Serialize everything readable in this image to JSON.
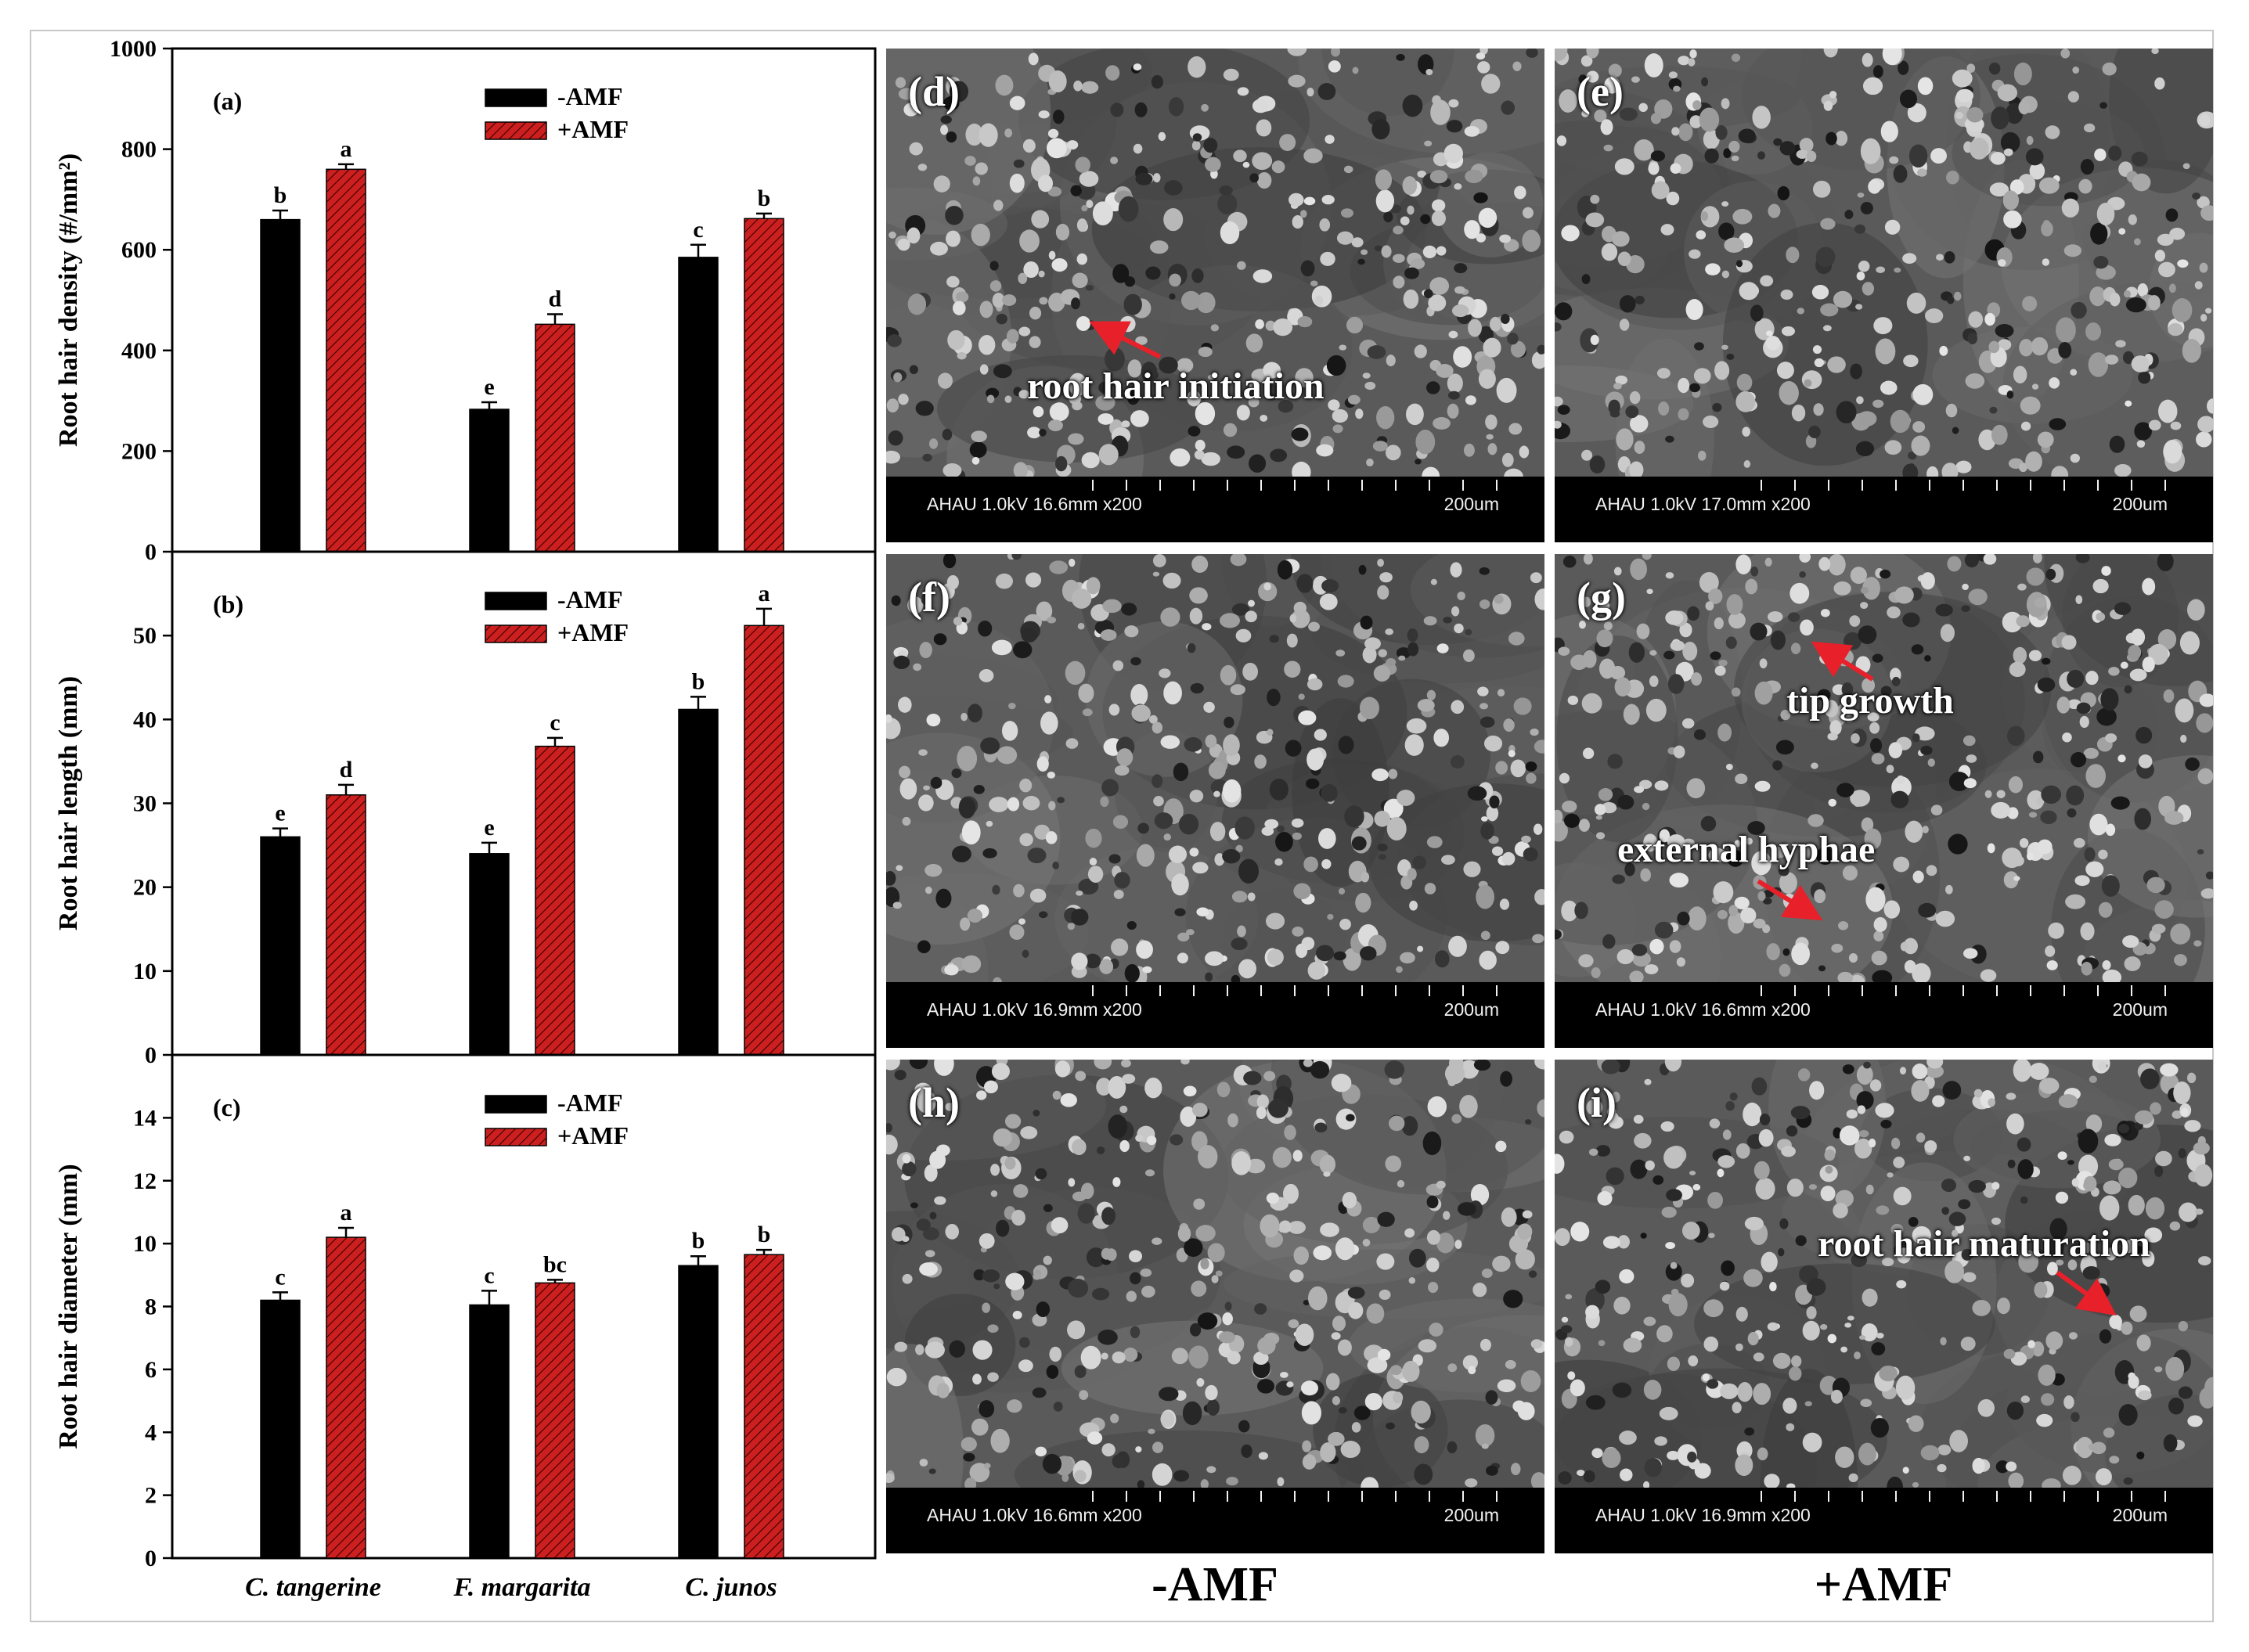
{
  "chart_data": [
    {
      "id": "a",
      "type": "bar",
      "panel_label": "(a)",
      "ylabel": "Root hair density (#/mm²)",
      "ylim": [
        0,
        1000
      ],
      "yticks": [
        "0",
        "200",
        "400",
        "600",
        "800",
        "1000"
      ],
      "categories": [
        "C. tangerine",
        "F. margarita",
        "C. junos"
      ],
      "show_xticklabels": false,
      "legend_position": "top-center",
      "series": [
        {
          "name": "-AMF",
          "values": [
            660,
            283,
            585
          ],
          "errors": [
            18,
            14,
            25
          ],
          "letters": [
            "b",
            "e",
            "c"
          ],
          "color": "#000000"
        },
        {
          "name": "+AMF",
          "values": [
            760,
            452,
            662
          ],
          "errors": [
            10,
            20,
            10
          ],
          "letters": [
            "a",
            "d",
            "b"
          ],
          "color": "#cc1f1f"
        }
      ]
    },
    {
      "id": "b",
      "type": "bar",
      "panel_label": "(b)",
      "ylabel": "Root hair length (mm)",
      "ylim": [
        0,
        60
      ],
      "yticks": [
        "0",
        "10",
        "20",
        "30",
        "40",
        "50"
      ],
      "categories": [
        "C. tangerine",
        "F. margarita",
        "C. junos"
      ],
      "show_xticklabels": false,
      "legend_position": "top-center",
      "series": [
        {
          "name": "-AMF",
          "values": [
            26.0,
            24.0,
            41.2
          ],
          "errors": [
            1.0,
            1.3,
            1.5
          ],
          "letters": [
            "e",
            "e",
            "b"
          ],
          "color": "#000000"
        },
        {
          "name": "+AMF",
          "values": [
            31.0,
            36.8,
            51.2
          ],
          "errors": [
            1.2,
            1.0,
            2.0
          ],
          "letters": [
            "d",
            "c",
            "a"
          ],
          "color": "#cc1f1f"
        }
      ]
    },
    {
      "id": "c",
      "type": "bar",
      "panel_label": "(c)",
      "ylabel": "Root hair diameter (mm)",
      "ylim": [
        0,
        16
      ],
      "yticks": [
        "0",
        "2",
        "4",
        "6",
        "8",
        "10",
        "12",
        "14"
      ],
      "categories": [
        "C. tangerine",
        "F. margarita",
        "C. junos"
      ],
      "show_xticklabels": true,
      "legend_position": "top-center",
      "series": [
        {
          "name": "-AMF",
          "values": [
            8.2,
            8.05,
            9.3
          ],
          "errors": [
            0.25,
            0.45,
            0.3
          ],
          "letters": [
            "c",
            "c",
            "b"
          ],
          "color": "#000000"
        },
        {
          "name": "+AMF",
          "values": [
            10.2,
            8.75,
            9.65
          ],
          "errors": [
            0.3,
            0.1,
            0.15
          ],
          "letters": [
            "a",
            "bc",
            "b"
          ],
          "color": "#cc1f1f"
        }
      ]
    }
  ],
  "sem_panels": [
    {
      "id": "d",
      "label": "(d)",
      "info": "AHAU 1.0kV 16.6mm x200",
      "scale": "200um",
      "annotation": "root hair initiation"
    },
    {
      "id": "e",
      "label": "(e)",
      "info": "AHAU 1.0kV 17.0mm x200",
      "scale": "200um",
      "annotation": ""
    },
    {
      "id": "f",
      "label": "(f)",
      "info": "AHAU 1.0kV 16.9mm x200",
      "scale": "200um",
      "annotation": ""
    },
    {
      "id": "g",
      "label": "(g)",
      "info": "AHAU 1.0kV 16.6mm x200",
      "scale": "200um",
      "annotation": "tip growth",
      "annotation2": "external hyphae"
    },
    {
      "id": "h",
      "label": "(h)",
      "info": "AHAU 1.0kV 16.6mm x200",
      "scale": "200um",
      "annotation": ""
    },
    {
      "id": "i",
      "label": "(i)",
      "info": "AHAU 1.0kV 16.9mm x200",
      "scale": "200um",
      "annotation": "root hair maturation"
    }
  ],
  "column_labels": [
    "-AMF",
    "+AMF"
  ],
  "colors": {
    "minus_amf": "#000000",
    "plus_amf": "#cc1f1f",
    "annotation_arrow": "#e8202a"
  }
}
